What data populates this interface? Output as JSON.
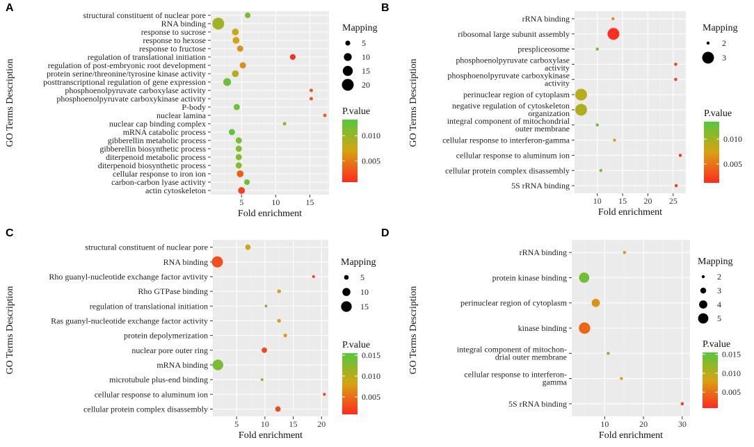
{
  "colors": {
    "panel_bg": "#ebebeb",
    "grid_major": "#ffffff",
    "grid_minor": "#f4f4f4",
    "grad_low": "#ff2a1f",
    "grad_mid": "#d6a312",
    "grad_high": "#55c83c"
  },
  "chart_data": [
    {
      "panel": "A",
      "type": "scatter",
      "xlabel": "Fold enrichment",
      "ylabel": "GO Terms Description",
      "xlim": [
        0.5,
        17.8
      ],
      "xticks": [
        5,
        10,
        15
      ],
      "size_legend": {
        "title": "Mapping",
        "values": [
          5,
          10,
          15,
          20
        ]
      },
      "color_legend": {
        "title": "P.value",
        "ticks": [
          0.005,
          0.01
        ],
        "range": [
          0.0008,
          0.0132
        ]
      },
      "points": [
        {
          "term": "structural constituent of nuclear pore",
          "x": 5.9,
          "mapping": 6,
          "p": 0.0115
        },
        {
          "term": "RNA binding",
          "x": 1.6,
          "mapping": 20,
          "p": 0.0095
        },
        {
          "term": "response to sucrose",
          "x": 4.1,
          "mapping": 8,
          "p": 0.0075
        },
        {
          "term": "response to hexose",
          "x": 4.2,
          "mapping": 8,
          "p": 0.0072
        },
        {
          "term": "response to fructose",
          "x": 4.8,
          "mapping": 7,
          "p": 0.0062
        },
        {
          "term": "regulation of translational initiation",
          "x": 12.5,
          "mapping": 6,
          "p": 0.001
        },
        {
          "term": "regulation of post-embryonic root development",
          "x": 5.2,
          "mapping": 7,
          "p": 0.0058
        },
        {
          "term": "protein serine/threonine/tyrosine kinase activity",
          "x": 4.1,
          "mapping": 8,
          "p": 0.0085
        },
        {
          "term": "posttranscriptional regulation of gene expression",
          "x": 2.9,
          "mapping": 10,
          "p": 0.012
        },
        {
          "term": "phosphoenolpyruvate carboxylase activity",
          "x": 15.2,
          "mapping": 3,
          "p": 0.003
        },
        {
          "term": "phosphoenolpyruvate carboxykinase activity",
          "x": 15.2,
          "mapping": 3,
          "p": 0.003
        },
        {
          "term": "P-body",
          "x": 4.3,
          "mapping": 7,
          "p": 0.0118
        },
        {
          "term": "nuclear lamina",
          "x": 17.2,
          "mapping": 3,
          "p": 0.0035
        },
        {
          "term": "nuclear cap binding complex",
          "x": 11.3,
          "mapping": 3,
          "p": 0.0105
        },
        {
          "term": "mRNA catabolic process",
          "x": 3.6,
          "mapping": 7,
          "p": 0.0128
        },
        {
          "term": "gibberellin metabolic process",
          "x": 4.6,
          "mapping": 7,
          "p": 0.0112
        },
        {
          "term": "gibberellin biosynthetic process",
          "x": 4.6,
          "mapping": 7,
          "p": 0.0112
        },
        {
          "term": "diterpenoid metabolic process",
          "x": 4.6,
          "mapping": 7,
          "p": 0.0108
        },
        {
          "term": "diterpenoid biosynthetic process",
          "x": 4.6,
          "mapping": 7,
          "p": 0.0108
        },
        {
          "term": "cellular response to iron ion",
          "x": 4.8,
          "mapping": 8,
          "p": 0.0035
        },
        {
          "term": "carbon-carbon lyase activity",
          "x": 5.8,
          "mapping": 6,
          "p": 0.012
        },
        {
          "term": "actin cytoskeleton",
          "x": 5.0,
          "mapping": 8,
          "p": 0.002
        }
      ]
    },
    {
      "panel": "B",
      "type": "scatter",
      "xlabel": "Fold enrichment",
      "ylabel": "GO Terms Description",
      "xlim": [
        5.5,
        27.5
      ],
      "xticks": [
        10,
        15,
        20,
        25
      ],
      "size_legend": {
        "title": "Mapping",
        "values": [
          2,
          3
        ]
      },
      "color_legend": {
        "title": "P.value",
        "ticks": [
          0.005,
          0.01
        ],
        "range": [
          0.0012,
          0.0135
        ]
      },
      "points": [
        {
          "term": "rRNA binding",
          "x": 13.1,
          "mapping": 1.6,
          "p": 0.0065
        },
        {
          "term": "ribosomal large subunit assembly",
          "x": 13.2,
          "mapping": 3,
          "p": 0.0015
        },
        {
          "term": "prespliceosome",
          "x": 10.0,
          "mapping": 1.6,
          "p": 0.0125
        },
        {
          "term": "phosphoenolpyruvate carboxylase\nactivity",
          "x": 25.5,
          "mapping": 1.6,
          "p": 0.002
        },
        {
          "term": "phosphoenolpyruvate carboxykinase\nactivity",
          "x": 25.5,
          "mapping": 1.6,
          "p": 0.002
        },
        {
          "term": "perinuclear region of cytoplasm",
          "x": 6.8,
          "mapping": 3,
          "p": 0.0088
        },
        {
          "term": "negative regulation of cytoskeleton\norganization",
          "x": 6.8,
          "mapping": 3,
          "p": 0.0092
        },
        {
          "term": "integral component of mitochondrial\nouter membrane",
          "x": 10.0,
          "mapping": 1.6,
          "p": 0.0125
        },
        {
          "term": "cellular response to interferon-gamma",
          "x": 13.4,
          "mapping": 1.6,
          "p": 0.0078
        },
        {
          "term": "cellular response to aluminum ion",
          "x": 26.4,
          "mapping": 1.6,
          "p": 0.0015
        },
        {
          "term": "cellular protein complex disassembly",
          "x": 10.7,
          "mapping": 1.6,
          "p": 0.0118
        },
        {
          "term": "5S rRNA binding",
          "x": 25.6,
          "mapping": 1.6,
          "p": 0.002
        }
      ]
    },
    {
      "panel": "C",
      "type": "scatter",
      "xlabel": "Fold enrichment",
      "ylabel": "GO Terms Description",
      "xlim": [
        0.8,
        21.2
      ],
      "xticks": [
        5,
        10,
        15,
        20
      ],
      "size_legend": {
        "title": "Mapping",
        "values": [
          5,
          10,
          15
        ]
      },
      "color_legend": {
        "title": "P.value",
        "ticks": [
          0.005,
          0.01,
          0.015
        ],
        "range": [
          0.0008,
          0.0155
        ]
      },
      "points": [
        {
          "term": "structural constituent of nuclear pore",
          "x": 7.0,
          "mapping": 6,
          "p": 0.0082
        },
        {
          "term": "RNA binding",
          "x": 1.6,
          "mapping": 16,
          "p": 0.003
        },
        {
          "term": "Rho guanyl-nucleotide exchange factor avtivity",
          "x": 18.6,
          "mapping": 3,
          "p": 0.002
        },
        {
          "term": "Rho GTPase binding",
          "x": 12.5,
          "mapping": 4,
          "p": 0.0085
        },
        {
          "term": "regulation of translational initiation",
          "x": 10.2,
          "mapping": 3,
          "p": 0.0125
        },
        {
          "term": "Ras guanyl-nucleotide exchange factor activity",
          "x": 12.5,
          "mapping": 4,
          "p": 0.0085
        },
        {
          "term": "protein depolymerization",
          "x": 13.6,
          "mapping": 4,
          "p": 0.008
        },
        {
          "term": "nuclear pore outer ring",
          "x": 9.9,
          "mapping": 6,
          "p": 0.0025
        },
        {
          "term": "mRNA binding",
          "x": 1.7,
          "mapping": 15,
          "p": 0.0135
        },
        {
          "term": "microtubule plus-end binding",
          "x": 9.5,
          "mapping": 3,
          "p": 0.013
        },
        {
          "term": "cellular response to aluminum ion",
          "x": 20.5,
          "mapping": 3,
          "p": 0.0015
        },
        {
          "term": "cellular protein complex disassembly",
          "x": 12.3,
          "mapping": 6,
          "p": 0.0025
        }
      ]
    },
    {
      "panel": "D",
      "type": "scatter",
      "xlabel": "Fold enrichment",
      "ylabel": "GO Terms Description",
      "xlim": [
        1.5,
        32.0
      ],
      "xticks": [
        10,
        20,
        30
      ],
      "size_legend": {
        "title": "Mapping",
        "values": [
          2,
          3,
          4,
          5
        ]
      },
      "color_legend": {
        "title": "P.value",
        "ticks": [
          0.005,
          0.01,
          0.015
        ],
        "range": [
          0.0008,
          0.0155
        ]
      },
      "points": [
        {
          "term": "rRNA binding",
          "x": 15.1,
          "mapping": 2,
          "p": 0.0075
        },
        {
          "term": "protein kinase binding",
          "x": 4.7,
          "mapping": 5,
          "p": 0.014
        },
        {
          "term": "perinuclear region of cytoplasm",
          "x": 7.7,
          "mapping": 4,
          "p": 0.0072
        },
        {
          "term": "kinase binding",
          "x": 4.8,
          "mapping": 5.6,
          "p": 0.0045
        },
        {
          "term": "integral component of mitochon-\ndrial outer membrane",
          "x": 10.9,
          "mapping": 2,
          "p": 0.0135
        },
        {
          "term": "cellular response to interferon-\ngamma",
          "x": 14.3,
          "mapping": 2,
          "p": 0.0085
        },
        {
          "term": "5S rRNA binding",
          "x": 30.0,
          "mapping": 2,
          "p": 0.0015
        }
      ]
    }
  ]
}
